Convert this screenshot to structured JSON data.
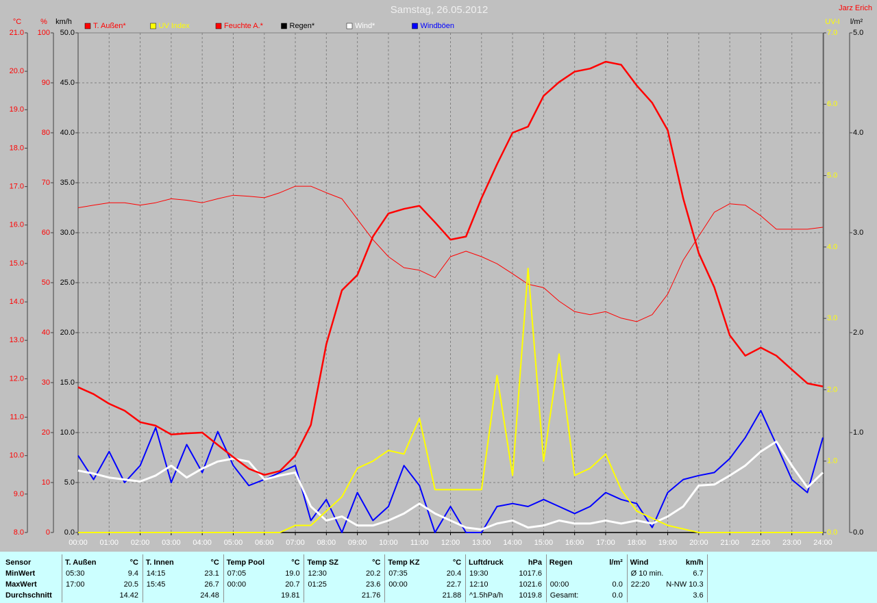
{
  "chart_data": {
    "type": "line",
    "title": "Samstag, 26.05.2012",
    "author": "Jarz Erich",
    "grid": true,
    "background": "#c0c0c0",
    "xlim": [
      0,
      24
    ],
    "xticks": [
      {
        "value": 0,
        "label": "00:00"
      },
      {
        "value": 1,
        "label": "01:00"
      },
      {
        "value": 2,
        "label": "02:00"
      },
      {
        "value": 3,
        "label": "03:00"
      },
      {
        "value": 4,
        "label": "04:00"
      },
      {
        "value": 5,
        "label": "05:00"
      },
      {
        "value": 6,
        "label": "06:00"
      },
      {
        "value": 7,
        "label": "07:00"
      },
      {
        "value": 8,
        "label": "08:00"
      },
      {
        "value": 9,
        "label": "09:00"
      },
      {
        "value": 10,
        "label": "10:00"
      },
      {
        "value": 11,
        "label": "11:00"
      },
      {
        "value": 12,
        "label": "12:00"
      },
      {
        "value": 13,
        "label": "13:00"
      },
      {
        "value": 14,
        "label": "14:00"
      },
      {
        "value": 15,
        "label": "15:00"
      },
      {
        "value": 16,
        "label": "16:00"
      },
      {
        "value": 17,
        "label": "17:00"
      },
      {
        "value": 18,
        "label": "18:00"
      },
      {
        "value": 19,
        "label": "19:00"
      },
      {
        "value": 20,
        "label": "20:00"
      },
      {
        "value": 21,
        "label": "21:00"
      },
      {
        "value": 22,
        "label": "22:00"
      },
      {
        "value": 23,
        "label": "23:00"
      },
      {
        "value": 24,
        "label": "24:00"
      }
    ],
    "axes": {
      "y": {
        "title": "°C",
        "color": "#ff0000",
        "ylim": [
          8,
          21
        ],
        "yticks": [
          {
            "value": 8,
            "label": "8.0"
          },
          {
            "value": 9,
            "label": "9.0"
          },
          {
            "value": 10,
            "label": "10.0"
          },
          {
            "value": 11,
            "label": "11.0"
          },
          {
            "value": 12,
            "label": "12.0"
          },
          {
            "value": 13,
            "label": "13.0"
          },
          {
            "value": 14,
            "label": "14.0"
          },
          {
            "value": 15,
            "label": "15.0"
          },
          {
            "value": 16,
            "label": "16.0"
          },
          {
            "value": 17,
            "label": "17.0"
          },
          {
            "value": 18,
            "label": "18.0"
          },
          {
            "value": 19,
            "label": "19.0"
          },
          {
            "value": 20,
            "label": "20.0"
          },
          {
            "value": 21,
            "label": "21.0"
          }
        ]
      },
      "y2": {
        "title": "%",
        "color": "#ff0000",
        "ylim": [
          0,
          100
        ],
        "yticks": [
          0,
          10,
          20,
          30,
          40,
          50,
          60,
          70,
          80,
          90,
          100
        ]
      },
      "y3": {
        "title": "km/h",
        "color": "#000000",
        "ylim": [
          0,
          50
        ],
        "yticks": [
          {
            "value": 0,
            "label": "0.0"
          },
          {
            "value": 5,
            "label": "5.0"
          },
          {
            "value": 10,
            "label": "10.0"
          },
          {
            "value": 15,
            "label": "15.0"
          },
          {
            "value": 20,
            "label": "20.0"
          },
          {
            "value": 25,
            "label": "25.0"
          },
          {
            "value": 30,
            "label": "30.0"
          },
          {
            "value": 35,
            "label": "35.0"
          },
          {
            "value": 40,
            "label": "40.0"
          },
          {
            "value": 45,
            "label": "45.0"
          },
          {
            "value": 50,
            "label": "50.0"
          }
        ]
      },
      "y4": {
        "title": "UV-I",
        "color": "#ffff00",
        "ylim": [
          0,
          7
        ],
        "yticks": [
          {
            "value": 0,
            "label": "0.0"
          },
          {
            "value": 1,
            "label": "1.0"
          },
          {
            "value": 2,
            "label": "2.0"
          },
          {
            "value": 3,
            "label": "3.0"
          },
          {
            "value": 4,
            "label": "4.0"
          },
          {
            "value": 5,
            "label": "5.0"
          },
          {
            "value": 6,
            "label": "6.0"
          },
          {
            "value": 7,
            "label": "7.0"
          }
        ]
      },
      "y5": {
        "title": "l/m²",
        "color": "#000000",
        "ylim": [
          0,
          5
        ],
        "yticks": [
          {
            "value": 0,
            "label": "0.0"
          },
          {
            "value": 1,
            "label": "1.0"
          },
          {
            "value": 2,
            "label": "2.0"
          },
          {
            "value": 3,
            "label": "3.0"
          },
          {
            "value": 4,
            "label": "4.0"
          },
          {
            "value": 5,
            "label": "5.0"
          }
        ]
      }
    },
    "x": [
      0,
      0.5,
      1,
      1.5,
      2,
      2.5,
      3,
      3.5,
      4,
      4.5,
      5,
      5.5,
      6,
      6.5,
      7,
      7.5,
      8,
      8.5,
      9,
      9.5,
      10,
      10.5,
      11,
      11.5,
      12,
      12.5,
      13,
      13.5,
      14,
      14.5,
      15,
      15.5,
      16,
      16.5,
      17,
      17.5,
      18,
      18.5,
      19,
      19.5,
      20,
      20.5,
      21,
      21.5,
      22,
      22.5,
      23,
      23.5,
      24
    ],
    "series": [
      {
        "name": "T. Außen*",
        "color": "#ff0000",
        "axis": "y",
        "width": 2.5,
        "values": [
          11.78,
          11.6,
          11.35,
          11.17,
          10.87,
          10.78,
          10.55,
          10.58,
          10.6,
          10.28,
          9.96,
          9.66,
          9.5,
          9.6,
          10.0,
          10.8,
          12.9,
          14.3,
          14.7,
          15.7,
          16.3,
          16.42,
          16.5,
          16.07,
          15.62,
          15.7,
          16.7,
          17.58,
          18.4,
          18.56,
          19.36,
          19.72,
          19.99,
          20.07,
          20.25,
          20.17,
          19.63,
          19.18,
          18.47,
          16.69,
          15.27,
          14.38,
          13.13,
          12.6,
          12.81,
          12.6,
          12.24,
          11.88,
          11.8
        ]
      },
      {
        "name": "UV Index",
        "color": "#ffff00",
        "axis": "y4",
        "width": 2,
        "values": [
          0,
          0,
          0,
          0,
          0,
          0,
          0,
          0,
          0,
          0,
          0,
          0,
          0,
          0,
          0.1,
          0.1,
          0.3,
          0.5,
          0.9,
          1.0,
          1.15,
          1.1,
          1.6,
          0.6,
          0.6,
          0.6,
          0.6,
          2.2,
          0.8,
          3.7,
          1.0,
          2.5,
          0.8,
          0.9,
          1.1,
          0.6,
          0.3,
          0.2,
          0.1,
          0.05,
          0,
          0,
          0,
          0,
          0,
          0,
          0,
          0,
          0
        ]
      },
      {
        "name": "Feuchte A.*",
        "color": "#ff0000",
        "axis": "y2",
        "width": 1,
        "values": [
          65,
          65.5,
          66,
          66,
          65.5,
          66,
          66.8,
          66.5,
          66,
          66.8,
          67.5,
          67.3,
          67,
          68,
          69.3,
          69.3,
          68,
          66.8,
          62.7,
          58.6,
          55.2,
          53,
          52.5,
          51,
          55.2,
          56.3,
          55.2,
          53.8,
          51.8,
          49.7,
          49,
          46.3,
          44.2,
          43.6,
          44.2,
          42.9,
          42.2,
          43.6,
          47.7,
          54.5,
          59.3,
          64.1,
          65.8,
          65.5,
          63.4,
          60.7,
          60.7,
          60.7,
          61.1
        ]
      },
      {
        "name": "Regen*",
        "color": "#000000",
        "axis": "y5",
        "width": 1.5,
        "values": [
          0,
          0,
          0,
          0,
          0,
          0,
          0,
          0,
          0,
          0,
          0,
          0,
          0,
          0,
          0,
          0,
          0,
          0,
          0,
          0,
          0,
          0,
          0,
          0,
          0,
          0,
          0,
          0,
          0,
          0,
          0,
          0,
          0,
          0,
          0,
          0,
          0,
          0,
          0,
          0,
          0,
          0,
          0,
          0,
          0,
          0,
          0,
          0,
          0
        ]
      },
      {
        "name": "Wind*",
        "color": "#ffffff",
        "axis": "y3",
        "width": 3,
        "values": [
          6.2,
          5.9,
          5.5,
          5.3,
          5.1,
          5.7,
          6.7,
          5.5,
          6.4,
          7.1,
          7.4,
          7.1,
          5.3,
          5.7,
          6.0,
          2.6,
          1.2,
          1.6,
          0.7,
          0.7,
          1.2,
          1.9,
          2.9,
          1.9,
          1.2,
          0.5,
          0.3,
          0.9,
          1.2,
          0.5,
          0.7,
          1.2,
          0.9,
          0.9,
          1.2,
          0.9,
          1.2,
          0.9,
          1.6,
          2.6,
          4.7,
          4.8,
          5.7,
          6.7,
          8.1,
          9.1,
          6.7,
          4.5,
          6.0
        ]
      },
      {
        "name": "Windböen",
        "color": "#0000ff",
        "axis": "y3",
        "width": 2,
        "values": [
          7.7,
          5.3,
          8.1,
          5.0,
          6.7,
          10.5,
          5.0,
          8.8,
          6.0,
          10.1,
          6.7,
          4.7,
          5.3,
          6.0,
          6.7,
          1.2,
          3.3,
          0,
          4.0,
          1.2,
          2.6,
          6.7,
          4.7,
          0,
          2.6,
          0,
          0,
          2.6,
          2.9,
          2.6,
          3.3,
          2.6,
          1.9,
          2.6,
          4.0,
          3.3,
          2.9,
          0.5,
          4.0,
          5.3,
          5.7,
          6.0,
          7.4,
          9.5,
          12.2,
          8.8,
          5.3,
          4.0,
          9.5
        ]
      }
    ],
    "draw_order": [
      2,
      3,
      5,
      4,
      1,
      0
    ]
  },
  "stats": {
    "row_labels": [
      "Sensor",
      "MinWert",
      "MaxWert",
      "Durchschnitt"
    ],
    "groups": [
      {
        "name": "T. Außen",
        "unit": "°C",
        "rows": [
          [
            "05:30",
            "9.4"
          ],
          [
            "17:00",
            "20.5"
          ],
          [
            null,
            "14.42"
          ]
        ]
      },
      {
        "name": "T. Innen",
        "unit": "°C",
        "rows": [
          [
            "14:15",
            "23.1"
          ],
          [
            "15:45",
            "26.7"
          ],
          [
            null,
            "24.48"
          ]
        ]
      },
      {
        "name": "Temp Pool",
        "unit": "°C",
        "rows": [
          [
            "07:05",
            "19.0"
          ],
          [
            "00:00",
            "20.7"
          ],
          [
            null,
            "19.81"
          ]
        ]
      },
      {
        "name": "Temp SZ",
        "unit": "°C",
        "rows": [
          [
            "12:30",
            "20.2"
          ],
          [
            "01:25",
            "23.6"
          ],
          [
            null,
            "21.76"
          ]
        ]
      },
      {
        "name": "Temp KZ",
        "unit": "°C",
        "rows": [
          [
            "07:35",
            "20.4"
          ],
          [
            "00:00",
            "22.7"
          ],
          [
            null,
            "21.88"
          ]
        ]
      },
      {
        "name": "Luftdruck",
        "unit": "hPa",
        "rows": [
          [
            "19:30",
            "1017.6"
          ],
          [
            "12:10",
            "1021.6"
          ],
          [
            "^1.5hPa/h",
            "1019.8"
          ]
        ]
      },
      {
        "name": "Regen",
        "unit": "l/m²",
        "rows": [
          [
            null,
            null
          ],
          [
            "00:00",
            "0.0"
          ],
          [
            "Gesamt:",
            "0.0"
          ]
        ]
      },
      {
        "name": "Wind",
        "unit": "km/h",
        "rows": [
          [
            "Ø 10 min.",
            "6.7"
          ],
          [
            "22:20",
            "N-NW 10.3"
          ],
          [
            null,
            "3.6"
          ]
        ]
      }
    ]
  }
}
